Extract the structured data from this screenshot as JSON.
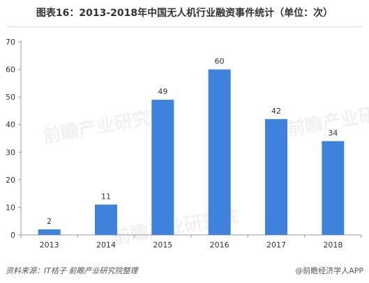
{
  "title": "图表16：2013-2018年中国无人机行业融资事件统计（单位：次）",
  "watermark": "前瞻产业研究院",
  "footer": {
    "source": "资料来源：IT桔子  前瞻产业研究院整理",
    "brand": "@前瞻经济学人APP"
  },
  "colors": {
    "bar": "#3F82DE",
    "axis": "#999999",
    "text": "#333333"
  },
  "chart_data": {
    "type": "bar",
    "categories": [
      "2013",
      "2014",
      "2015",
      "2016",
      "2017",
      "2018"
    ],
    "values": [
      2,
      11,
      49,
      60,
      42,
      34
    ],
    "ylim": [
      0,
      70
    ],
    "yticks": [
      0,
      10,
      20,
      30,
      40,
      50,
      60,
      70
    ],
    "grid": false,
    "data_labels": true
  }
}
